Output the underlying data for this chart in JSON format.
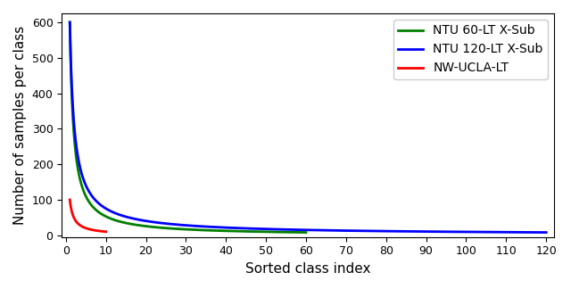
{
  "title": "",
  "xlabel": "Sorted class index",
  "ylabel": "Number of samples per class",
  "xlim": [
    -1,
    122
  ],
  "ylim": [
    -5,
    625
  ],
  "xticks": [
    0,
    10,
    20,
    30,
    40,
    50,
    60,
    70,
    80,
    90,
    100,
    110,
    120
  ],
  "yticks": [
    0,
    100,
    200,
    300,
    400,
    500,
    600
  ],
  "curves": [
    {
      "label": "NTU 60-LT X-Sub",
      "color": "#008000",
      "n_classes": 60,
      "x_start": 1,
      "max_val": 600,
      "min_val": 8,
      "power": 1.6
    },
    {
      "label": "NTU 120-LT X-Sub",
      "color": "#0000FF",
      "n_classes": 120,
      "x_start": 1,
      "max_val": 600,
      "min_val": 8,
      "power": 1.3
    },
    {
      "label": "NW-UCLA-LT",
      "color": "#FF0000",
      "n_classes": 10,
      "x_start": 1,
      "max_val": 100,
      "min_val": 10,
      "power": 1.5
    }
  ],
  "legend_loc": "upper right",
  "legend_fontsize": 10,
  "figsize": [
    6.4,
    3.24
  ],
  "dpi": 100,
  "xlabel_fontsize": 11,
  "ylabel_fontsize": 11,
  "tick_labelsize": 9,
  "linewidth": 2.0
}
